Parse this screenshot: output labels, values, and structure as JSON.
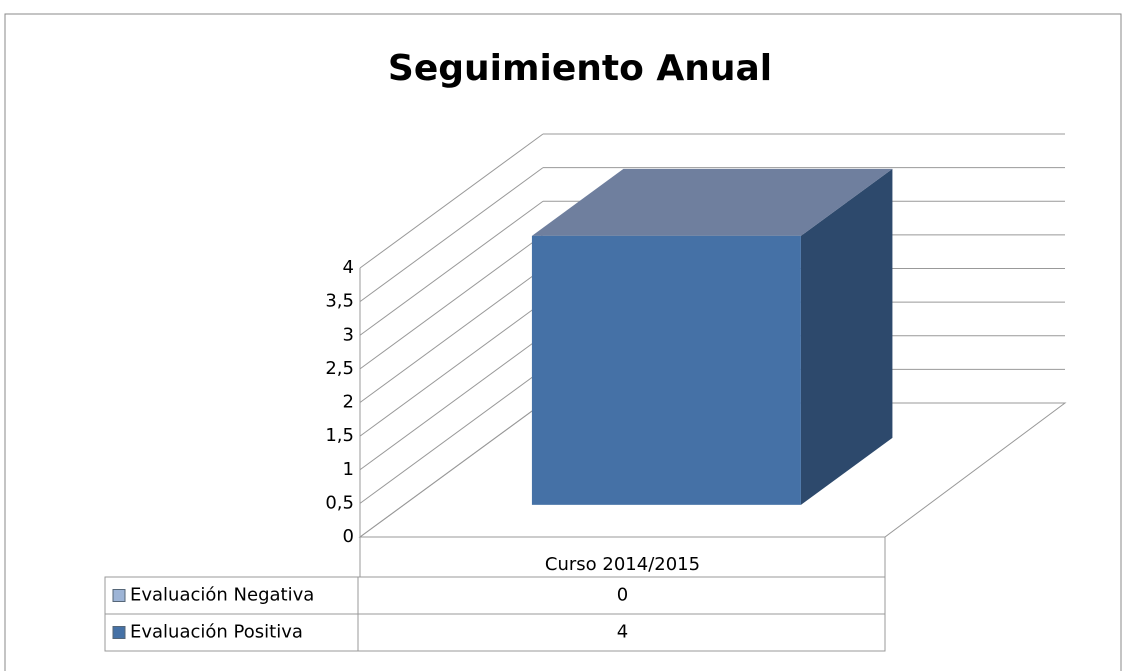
{
  "chart_data": {
    "type": "bar3d",
    "title": "Seguimiento Anual",
    "categories": [
      "Curso 2014/2015"
    ],
    "series": [
      {
        "name": "Evaluación Negativa",
        "color": "#9db4d6",
        "values": [
          0
        ]
      },
      {
        "name": "Evaluación Positiva",
        "color": "#4571a6",
        "values": [
          4
        ]
      }
    ],
    "ylim": [
      0,
      4
    ],
    "yticks": [
      0,
      {
        "value": 0.5,
        "label": "0,5"
      },
      1,
      {
        "value": 1.5,
        "label": "1,5"
      },
      2,
      {
        "value": 2.5,
        "label": "2,5"
      },
      3,
      {
        "value": 3.5,
        "label": "3,5"
      },
      4
    ],
    "grid": true,
    "data_table": true
  }
}
